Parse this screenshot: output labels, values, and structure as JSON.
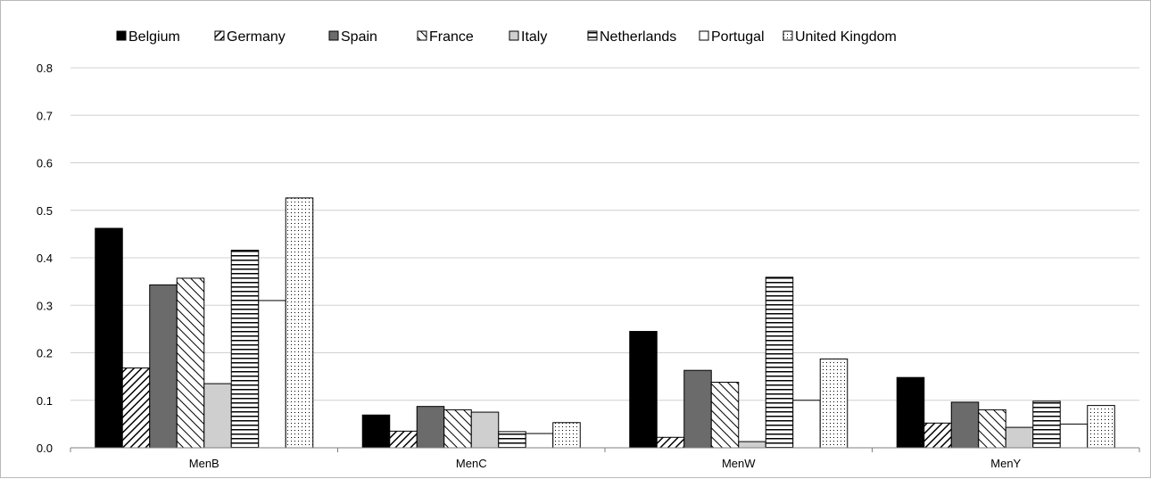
{
  "chart_data": {
    "type": "bar",
    "title": "",
    "xlabel": "",
    "ylabel": "",
    "categories": [
      "MenB",
      "MenC",
      "MenW",
      "MenY"
    ],
    "ylim": [
      0,
      0.8
    ],
    "yticks": [
      "0.0",
      "0.1",
      "0.2",
      "0.3",
      "0.4",
      "0.5",
      "0.6",
      "0.7",
      "0.8"
    ],
    "grid": true,
    "legend_position": "top",
    "series": [
      {
        "name": "Belgium",
        "pattern": "solid-black",
        "values": [
          0.462,
          0.069,
          0.245,
          0.148
        ]
      },
      {
        "name": "Germany",
        "pattern": "diagonal-hatch",
        "values": [
          0.168,
          0.035,
          0.022,
          0.052
        ]
      },
      {
        "name": "Spain",
        "pattern": "solid-dark-gray",
        "values": [
          0.343,
          0.087,
          0.163,
          0.096
        ]
      },
      {
        "name": "France",
        "pattern": "back-diagonal-hatch",
        "values": [
          0.357,
          0.08,
          0.138,
          0.08
        ]
      },
      {
        "name": "Italy",
        "pattern": "solid-light-gray",
        "values": [
          0.135,
          0.075,
          0.013,
          0.043
        ]
      },
      {
        "name": "Netherlands",
        "pattern": "horizontal-lines",
        "values": [
          0.416,
          0.034,
          0.359,
          0.098
        ]
      },
      {
        "name": "Portugal",
        "pattern": "white",
        "values": [
          0.31,
          0.03,
          0.1,
          0.05
        ]
      },
      {
        "name": "United Kingdom",
        "pattern": "dotted",
        "values": [
          0.526,
          0.053,
          0.187,
          0.089
        ]
      }
    ]
  }
}
